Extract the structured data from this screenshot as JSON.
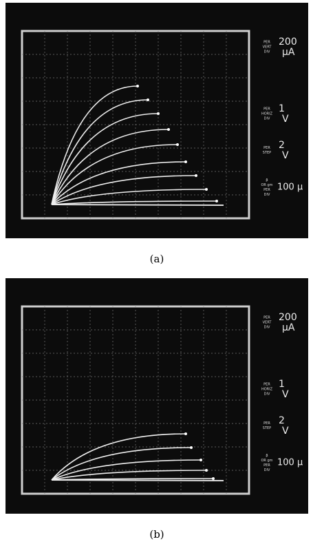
{
  "panels": [
    {
      "caption": "(a)",
      "settings": [
        {
          "label": [
            "PER",
            "VERT",
            "DIV"
          ],
          "value": "200",
          "unit": "μA"
        },
        {
          "label": [
            "PER",
            "HORIZ",
            "DIV"
          ],
          "value": "1",
          "unit": "V"
        },
        {
          "label": [
            "PER",
            "STEP"
          ],
          "value": "2",
          "unit": "V"
        },
        {
          "label": [
            "β",
            "OR gm",
            "PER",
            "DIV"
          ],
          "value": "100 μ",
          "unit": null
        }
      ]
    },
    {
      "caption": "(b)",
      "settings": [
        {
          "label": [
            "PER",
            "VERT",
            "DIV"
          ],
          "value": "200",
          "unit": "μA"
        },
        {
          "label": [
            "PER",
            "HORIZ",
            "DIV"
          ],
          "value": "1",
          "unit": "V"
        },
        {
          "label": [
            "PER",
            "STEP"
          ],
          "value": "2",
          "unit": "V"
        },
        {
          "label": [
            "β",
            "OR gm",
            "PER",
            "DIV"
          ],
          "value": "100 μ",
          "unit": null
        }
      ]
    }
  ]
}
